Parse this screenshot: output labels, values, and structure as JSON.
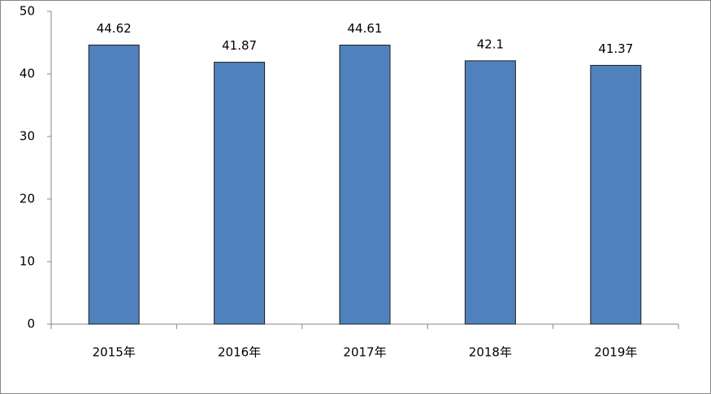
{
  "chart_data": {
    "type": "bar",
    "categories": [
      "2015年",
      "2016年",
      "2017年",
      "2018年",
      "2019年"
    ],
    "values": [
      44.62,
      41.87,
      44.61,
      42.1,
      41.37
    ],
    "color": "#4f81bd",
    "ylim": [
      0,
      50
    ],
    "yticks": [
      0,
      10,
      20,
      30,
      40,
      50
    ],
    "grid": false
  }
}
